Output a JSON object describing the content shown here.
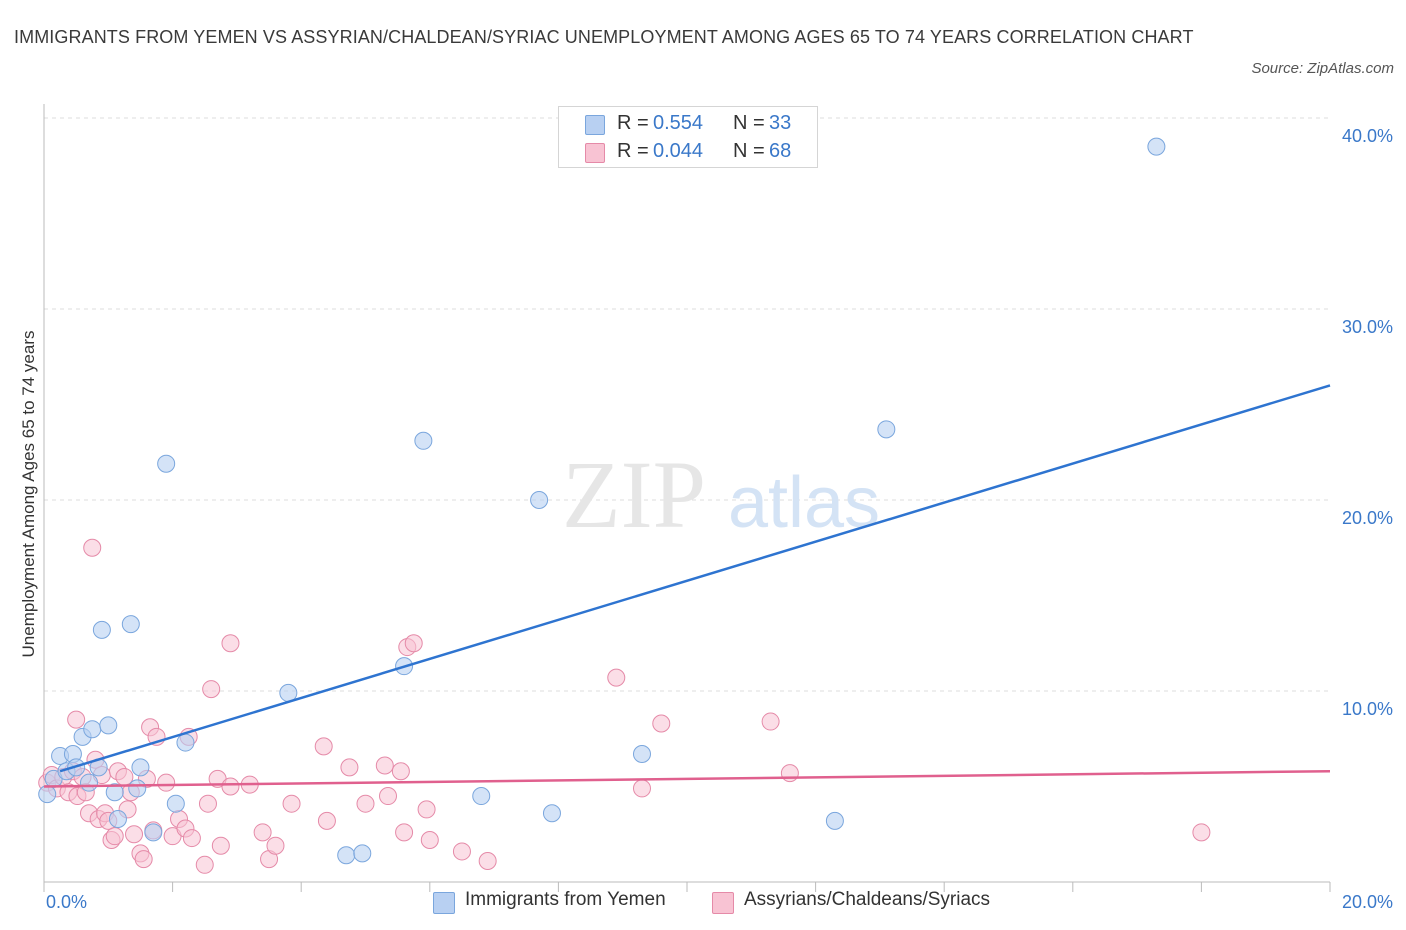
{
  "title": "IMMIGRANTS FROM YEMEN VS ASSYRIAN/CHALDEAN/SYRIAC UNEMPLOYMENT AMONG AGES 65 TO 74 YEARS CORRELATION CHART",
  "source": "Source: ZipAtlas.com",
  "watermark": {
    "zip": "ZIP",
    "atlas": "atlas"
  },
  "legend_top": [
    {
      "r_label": "R =",
      "r_value": "0.554",
      "n_label": "N =",
      "n_value": "33"
    },
    {
      "r_label": "R =",
      "r_value": "0.044",
      "n_label": "N =",
      "n_value": "68"
    }
  ],
  "legend_bottom": [
    "Immigrants from Yemen",
    "Assyrians/Chaldeans/Syriacs"
  ],
  "colors": {
    "blue_fill": "#b8d0f2",
    "blue_stroke": "#7aa6dd",
    "blue_line": "#2e74d0",
    "pink_fill": "#f8c3d3",
    "pink_stroke": "#e58aa8",
    "pink_line": "#e0608e",
    "tick_text": "#3a78c9",
    "grid": "#dddddd"
  },
  "chart_data": {
    "type": "scatter",
    "title": "IMMIGRANTS FROM YEMEN VS ASSYRIAN/CHALDEAN/SYRIAC UNEMPLOYMENT AMONG AGES 65 TO 74 YEARS CORRELATION CHART",
    "xlabel": "",
    "ylabel": "Unemployment Among Ages 65 to 74 years",
    "xlim": [
      0,
      20
    ],
    "ylim": [
      0,
      40
    ],
    "x_tick_labels": [
      "0.0%",
      "20.0%"
    ],
    "y_ticks": [
      10,
      20,
      30,
      40
    ],
    "y_tick_labels": [
      "10.0%",
      "20.0%",
      "30.0%",
      "40.0%"
    ],
    "grid": true,
    "legend_position": "top-center",
    "series": [
      {
        "name": "Immigrants from Yemen",
        "r": 0.554,
        "n": 33,
        "trend": {
          "x": [
            0.25,
            20
          ],
          "y": [
            5.8,
            26.0
          ]
        },
        "points": [
          [
            0.05,
            4.6
          ],
          [
            0.15,
            5.4
          ],
          [
            0.25,
            6.6
          ],
          [
            0.35,
            5.8
          ],
          [
            0.45,
            6.7
          ],
          [
            0.5,
            6.0
          ],
          [
            0.6,
            7.6
          ],
          [
            0.7,
            5.2
          ],
          [
            0.75,
            8.0
          ],
          [
            0.85,
            6.0
          ],
          [
            0.9,
            13.2
          ],
          [
            1.0,
            8.2
          ],
          [
            1.1,
            4.7
          ],
          [
            1.15,
            3.3
          ],
          [
            1.35,
            13.5
          ],
          [
            1.45,
            4.9
          ],
          [
            1.5,
            6.0
          ],
          [
            1.7,
            2.6
          ],
          [
            1.9,
            21.9
          ],
          [
            2.05,
            4.1
          ],
          [
            2.2,
            7.3
          ],
          [
            3.8,
            9.9
          ],
          [
            4.7,
            1.4
          ],
          [
            4.95,
            1.5
          ],
          [
            5.6,
            11.3
          ],
          [
            5.9,
            23.1
          ],
          [
            6.8,
            4.5
          ],
          [
            7.7,
            20.0
          ],
          [
            7.9,
            3.6
          ],
          [
            9.3,
            6.7
          ],
          [
            12.3,
            3.2
          ],
          [
            13.1,
            23.7
          ],
          [
            17.3,
            38.5
          ]
        ]
      },
      {
        "name": "Assyrians/Chaldeans/Syriacs",
        "r": 0.044,
        "n": 68,
        "trend": {
          "x": [
            0,
            20
          ],
          "y": [
            5.0,
            5.8
          ]
        },
        "points": [
          [
            0.05,
            5.2
          ],
          [
            0.12,
            5.6
          ],
          [
            0.2,
            4.9
          ],
          [
            0.3,
            5.5
          ],
          [
            0.38,
            4.7
          ],
          [
            0.45,
            5.8
          ],
          [
            0.52,
            4.5
          ],
          [
            0.5,
            8.5
          ],
          [
            0.6,
            5.5
          ],
          [
            0.65,
            4.7
          ],
          [
            0.7,
            3.6
          ],
          [
            0.75,
            17.5
          ],
          [
            0.8,
            6.4
          ],
          [
            0.85,
            3.3
          ],
          [
            0.9,
            5.6
          ],
          [
            0.95,
            3.6
          ],
          [
            1.0,
            3.2
          ],
          [
            1.05,
            2.2
          ],
          [
            1.1,
            2.4
          ],
          [
            1.15,
            5.8
          ],
          [
            1.25,
            5.5
          ],
          [
            1.3,
            3.8
          ],
          [
            1.35,
            4.7
          ],
          [
            1.4,
            2.5
          ],
          [
            1.5,
            1.5
          ],
          [
            1.55,
            1.2
          ],
          [
            1.6,
            5.4
          ],
          [
            1.65,
            8.1
          ],
          [
            1.7,
            2.7
          ],
          [
            1.75,
            7.6
          ],
          [
            1.9,
            5.2
          ],
          [
            2.0,
            2.4
          ],
          [
            2.1,
            3.3
          ],
          [
            2.2,
            2.8
          ],
          [
            2.25,
            7.6
          ],
          [
            2.3,
            2.3
          ],
          [
            2.5,
            0.9
          ],
          [
            2.55,
            4.1
          ],
          [
            2.6,
            10.1
          ],
          [
            2.7,
            5.4
          ],
          [
            2.75,
            1.9
          ],
          [
            2.9,
            5.0
          ],
          [
            2.9,
            12.5
          ],
          [
            3.2,
            5.1
          ],
          [
            3.4,
            2.6
          ],
          [
            3.5,
            1.2
          ],
          [
            3.6,
            1.9
          ],
          [
            3.85,
            4.1
          ],
          [
            4.4,
            3.2
          ],
          [
            4.35,
            7.1
          ],
          [
            4.75,
            6.0
          ],
          [
            5.0,
            4.1
          ],
          [
            5.3,
            6.1
          ],
          [
            5.35,
            4.5
          ],
          [
            5.55,
            5.8
          ],
          [
            5.6,
            2.6
          ],
          [
            5.65,
            12.3
          ],
          [
            5.75,
            12.5
          ],
          [
            5.95,
            3.8
          ],
          [
            6.0,
            2.2
          ],
          [
            6.5,
            1.6
          ],
          [
            6.9,
            1.1
          ],
          [
            8.9,
            10.7
          ],
          [
            9.3,
            4.9
          ],
          [
            9.6,
            8.3
          ],
          [
            11.3,
            8.4
          ],
          [
            11.6,
            5.7
          ],
          [
            18.0,
            2.6
          ]
        ]
      }
    ]
  }
}
